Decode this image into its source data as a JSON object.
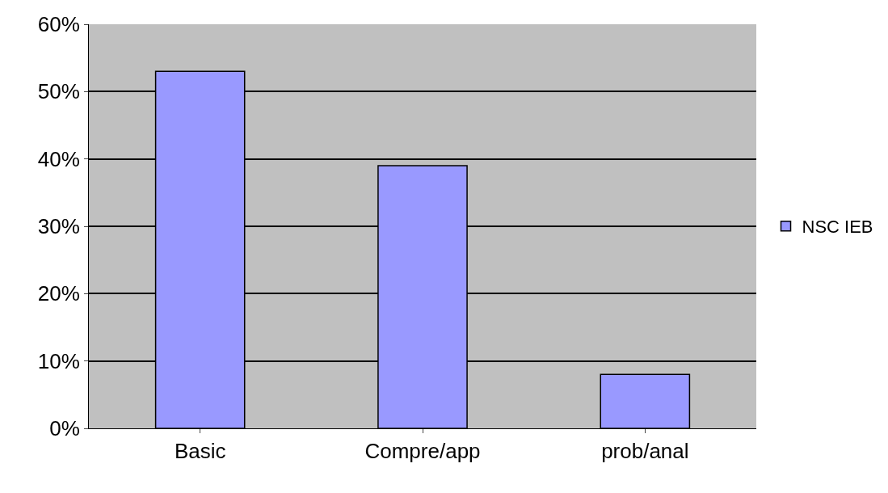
{
  "chart_data": {
    "type": "bar",
    "categories": [
      "Basic",
      "Compre/app",
      "prob/anal"
    ],
    "series": [
      {
        "name": "NSC IEB",
        "color": "#9999ff",
        "values": [
          53,
          39,
          8
        ]
      }
    ],
    "ylim": [
      0,
      60
    ],
    "yticks": [
      {
        "value": 0,
        "label": "0%"
      },
      {
        "value": 10,
        "label": "10%"
      },
      {
        "value": 20,
        "label": "20%"
      },
      {
        "value": 30,
        "label": "30%"
      },
      {
        "value": 40,
        "label": "40%"
      },
      {
        "value": 50,
        "label": "50%"
      },
      {
        "value": 60,
        "label": "60%"
      }
    ],
    "grid": "y",
    "legend": "right"
  }
}
